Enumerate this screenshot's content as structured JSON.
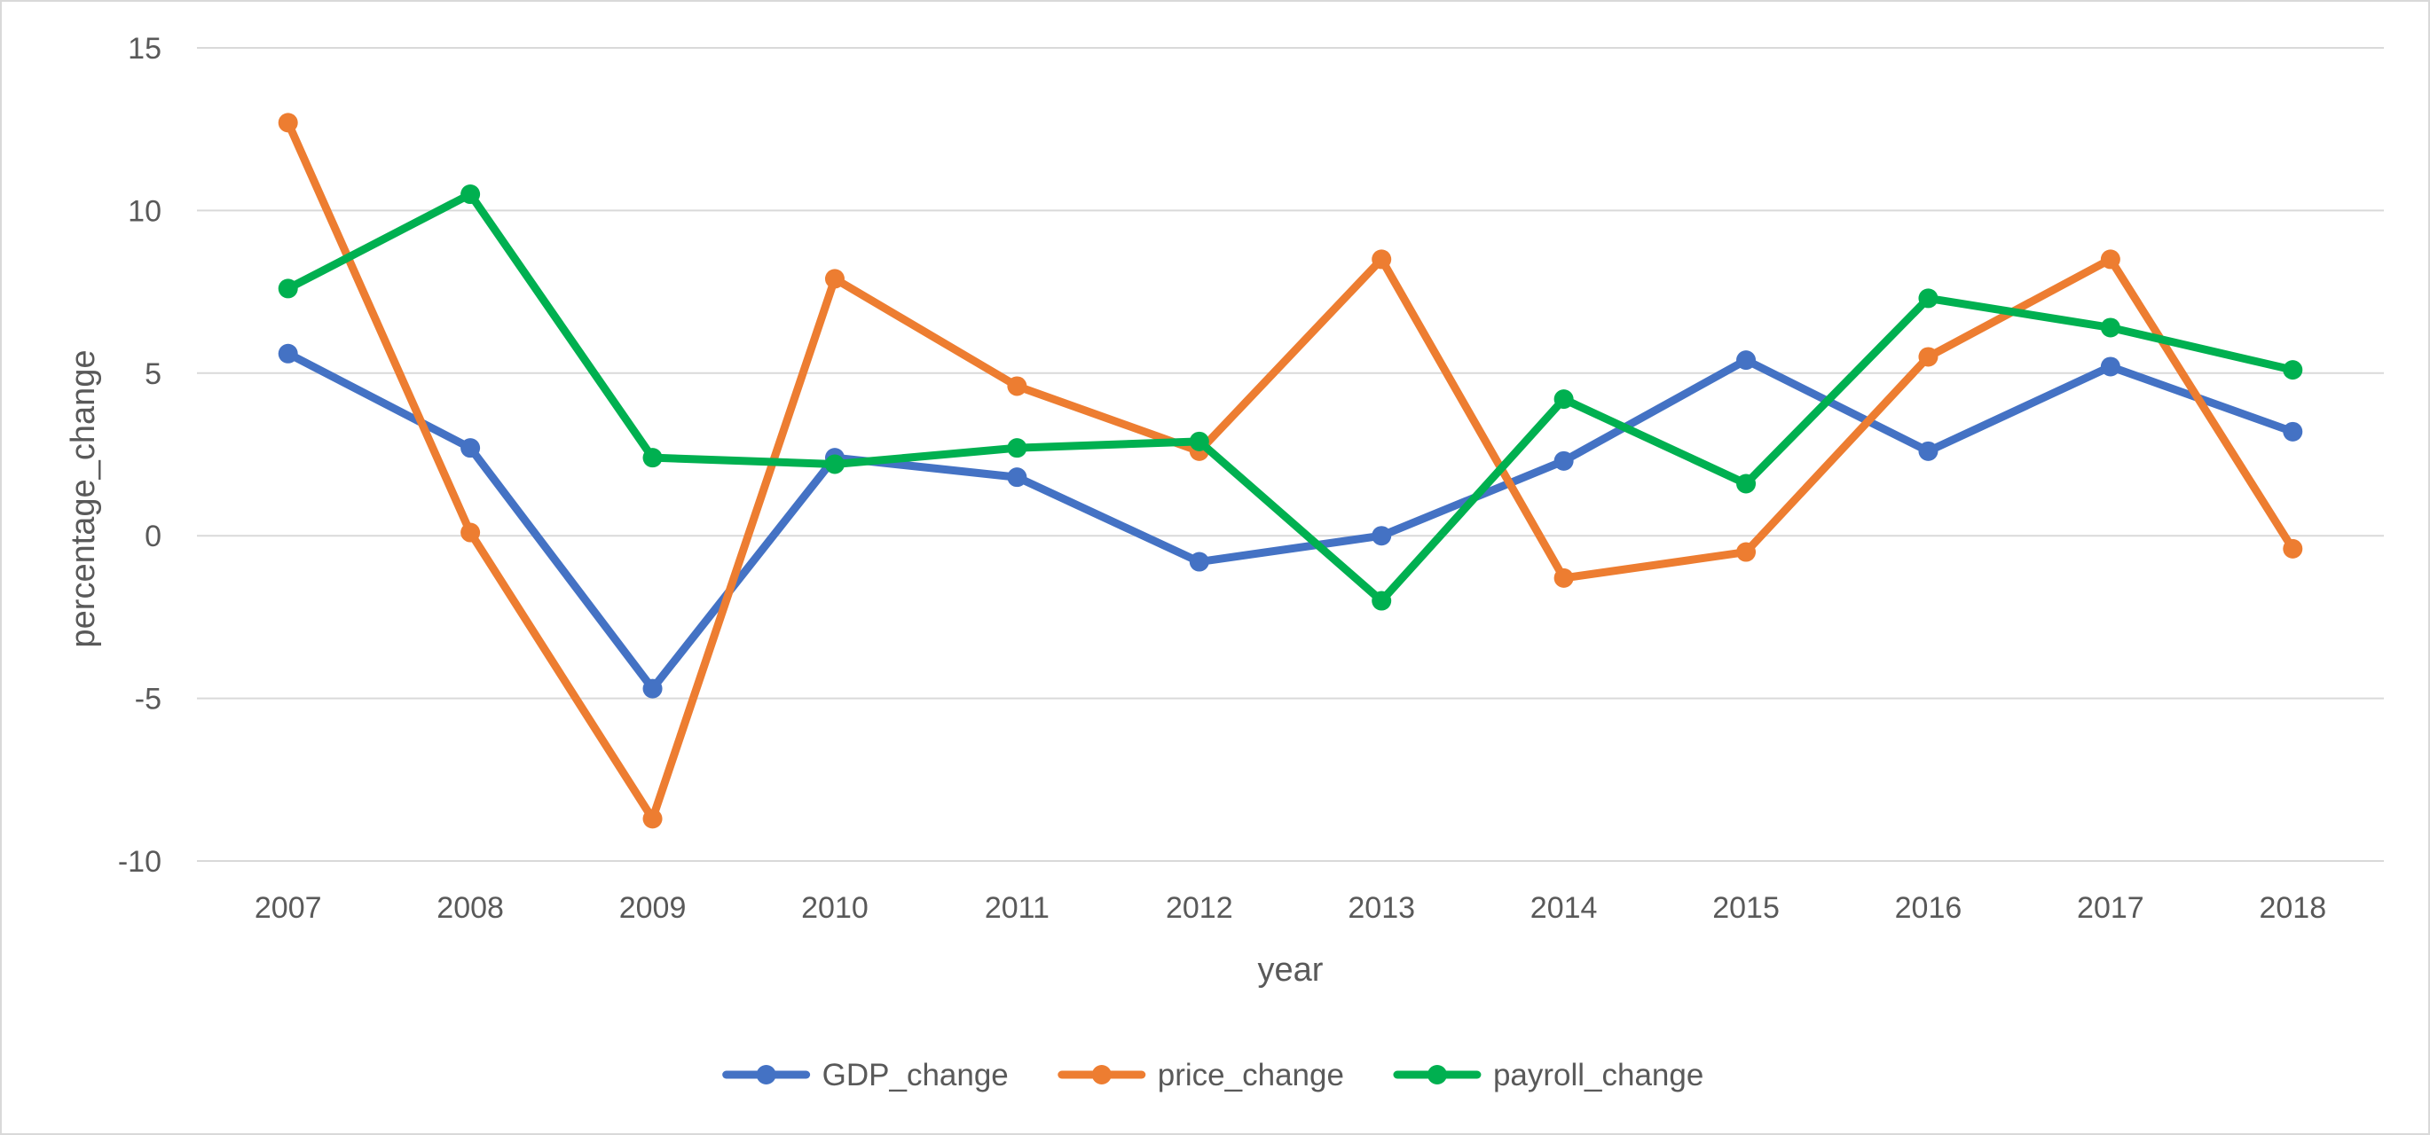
{
  "chart_data": {
    "type": "line",
    "title": "",
    "xlabel": "year",
    "ylabel": "percentage_change",
    "x": [
      "2007",
      "2008",
      "2009",
      "2010",
      "2011",
      "2012",
      "2013",
      "2014",
      "2015",
      "2016",
      "2017",
      "2018"
    ],
    "ylim": [
      -10,
      15
    ],
    "yticks": [
      -10,
      -5,
      0,
      5,
      10,
      15
    ],
    "grid": true,
    "legend_position": "bottom",
    "series": [
      {
        "name": "GDP_change",
        "color": "#4472c4",
        "values": [
          5.6,
          2.7,
          -4.7,
          2.4,
          1.8,
          -0.8,
          0.0,
          2.3,
          5.4,
          2.6,
          5.2,
          3.2
        ]
      },
      {
        "name": "price_change",
        "color": "#ed7d31",
        "values": [
          12.7,
          0.1,
          -8.7,
          7.9,
          4.6,
          2.6,
          8.5,
          -1.3,
          -0.5,
          5.5,
          8.5,
          -0.4
        ]
      },
      {
        "name": "payroll_change",
        "color": "#00b050",
        "values": [
          7.6,
          10.5,
          2.4,
          2.2,
          2.7,
          2.9,
          -2.0,
          4.2,
          1.6,
          7.3,
          6.4,
          5.1
        ]
      }
    ]
  }
}
